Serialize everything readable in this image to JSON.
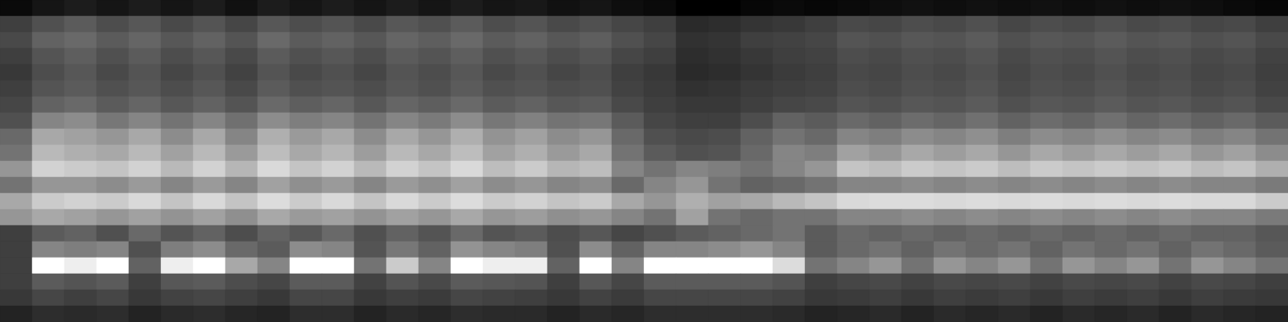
{
  "chart_data": {
    "type": "heatmap",
    "tick_labels": false,
    "cells": [
      [
        0.15,
        0.18,
        0.2,
        0.18,
        0.2,
        0.18,
        0.2,
        0.17,
        0.2,
        0.18,
        0.2,
        0.18,
        0.2,
        0.18,
        0.2,
        0.18,
        0.19,
        0.17,
        0.18,
        0.16,
        0.15,
        0.12,
        0.12,
        0.14,
        0.15,
        0.14,
        0.15,
        0.16,
        0.17,
        0.16,
        0.17,
        0.16,
        0.17,
        0.16,
        0.17,
        0.16,
        0.17,
        0.16,
        0.15,
        0.14
      ],
      [
        0.3,
        0.35,
        0.38,
        0.34,
        0.37,
        0.33,
        0.36,
        0.32,
        0.37,
        0.34,
        0.36,
        0.33,
        0.37,
        0.35,
        0.38,
        0.34,
        0.36,
        0.33,
        0.35,
        0.32,
        0.3,
        0.24,
        0.25,
        0.27,
        0.28,
        0.3,
        0.33,
        0.32,
        0.34,
        0.33,
        0.35,
        0.32,
        0.34,
        0.33,
        0.35,
        0.33,
        0.34,
        0.32,
        0.33,
        0.3
      ],
      [
        0.33,
        0.4,
        0.42,
        0.38,
        0.41,
        0.37,
        0.4,
        0.36,
        0.42,
        0.38,
        0.4,
        0.37,
        0.41,
        0.39,
        0.42,
        0.38,
        0.4,
        0.37,
        0.39,
        0.35,
        0.32,
        0.26,
        0.27,
        0.3,
        0.31,
        0.32,
        0.36,
        0.35,
        0.37,
        0.36,
        0.38,
        0.35,
        0.37,
        0.36,
        0.38,
        0.36,
        0.37,
        0.35,
        0.36,
        0.33
      ],
      [
        0.3,
        0.36,
        0.39,
        0.35,
        0.38,
        0.34,
        0.37,
        0.33,
        0.38,
        0.35,
        0.37,
        0.34,
        0.38,
        0.36,
        0.39,
        0.35,
        0.37,
        0.34,
        0.36,
        0.32,
        0.3,
        0.25,
        0.26,
        0.28,
        0.3,
        0.31,
        0.34,
        0.33,
        0.35,
        0.34,
        0.36,
        0.33,
        0.35,
        0.34,
        0.36,
        0.34,
        0.35,
        0.33,
        0.34,
        0.31
      ],
      [
        0.28,
        0.34,
        0.37,
        0.33,
        0.36,
        0.32,
        0.35,
        0.31,
        0.36,
        0.33,
        0.35,
        0.32,
        0.36,
        0.34,
        0.37,
        0.33,
        0.35,
        0.32,
        0.34,
        0.3,
        0.28,
        0.24,
        0.25,
        0.27,
        0.29,
        0.3,
        0.33,
        0.32,
        0.34,
        0.33,
        0.35,
        0.32,
        0.34,
        0.33,
        0.35,
        0.33,
        0.34,
        0.32,
        0.33,
        0.3
      ],
      [
        0.3,
        0.36,
        0.38,
        0.35,
        0.37,
        0.34,
        0.37,
        0.33,
        0.38,
        0.35,
        0.36,
        0.34,
        0.37,
        0.35,
        0.38,
        0.35,
        0.36,
        0.34,
        0.35,
        0.31,
        0.29,
        0.26,
        0.27,
        0.29,
        0.3,
        0.31,
        0.34,
        0.33,
        0.35,
        0.34,
        0.36,
        0.33,
        0.35,
        0.34,
        0.36,
        0.34,
        0.35,
        0.33,
        0.34,
        0.31
      ],
      [
        0.32,
        0.4,
        0.42,
        0.38,
        0.41,
        0.37,
        0.4,
        0.36,
        0.42,
        0.39,
        0.41,
        0.37,
        0.41,
        0.39,
        0.42,
        0.38,
        0.4,
        0.37,
        0.38,
        0.33,
        0.3,
        0.28,
        0.28,
        0.3,
        0.32,
        0.33,
        0.36,
        0.35,
        0.37,
        0.36,
        0.38,
        0.35,
        0.37,
        0.36,
        0.38,
        0.36,
        0.37,
        0.35,
        0.36,
        0.33
      ],
      [
        0.35,
        0.5,
        0.52,
        0.46,
        0.5,
        0.45,
        0.5,
        0.44,
        0.52,
        0.48,
        0.5,
        0.45,
        0.5,
        0.47,
        0.52,
        0.46,
        0.49,
        0.45,
        0.46,
        0.38,
        0.32,
        0.3,
        0.3,
        0.34,
        0.4,
        0.38,
        0.42,
        0.4,
        0.43,
        0.41,
        0.44,
        0.4,
        0.43,
        0.41,
        0.44,
        0.41,
        0.43,
        0.4,
        0.42,
        0.38
      ],
      [
        0.42,
        0.6,
        0.58,
        0.55,
        0.6,
        0.52,
        0.6,
        0.5,
        0.62,
        0.56,
        0.6,
        0.52,
        0.6,
        0.55,
        0.62,
        0.54,
        0.58,
        0.52,
        0.55,
        0.42,
        0.35,
        0.33,
        0.34,
        0.4,
        0.45,
        0.42,
        0.5,
        0.48,
        0.52,
        0.5,
        0.53,
        0.48,
        0.52,
        0.5,
        0.53,
        0.5,
        0.52,
        0.48,
        0.5,
        0.45
      ],
      [
        0.45,
        0.65,
        0.62,
        0.6,
        0.65,
        0.58,
        0.65,
        0.56,
        0.66,
        0.6,
        0.64,
        0.57,
        0.65,
        0.6,
        0.66,
        0.58,
        0.62,
        0.56,
        0.6,
        0.45,
        0.38,
        0.35,
        0.36,
        0.42,
        0.5,
        0.48,
        0.58,
        0.55,
        0.6,
        0.57,
        0.6,
        0.55,
        0.6,
        0.57,
        0.6,
        0.57,
        0.6,
        0.55,
        0.58,
        0.52
      ],
      [
        0.55,
        0.72,
        0.7,
        0.68,
        0.72,
        0.65,
        0.72,
        0.64,
        0.74,
        0.68,
        0.72,
        0.65,
        0.72,
        0.68,
        0.74,
        0.66,
        0.7,
        0.64,
        0.66,
        0.5,
        0.45,
        0.5,
        0.48,
        0.45,
        0.5,
        0.55,
        0.68,
        0.66,
        0.7,
        0.68,
        0.7,
        0.66,
        0.7,
        0.68,
        0.7,
        0.68,
        0.7,
        0.66,
        0.68,
        0.62
      ],
      [
        0.45,
        0.55,
        0.55,
        0.52,
        0.56,
        0.5,
        0.56,
        0.5,
        0.58,
        0.53,
        0.56,
        0.5,
        0.56,
        0.53,
        0.58,
        0.52,
        0.55,
        0.5,
        0.52,
        0.42,
        0.5,
        0.55,
        0.45,
        0.4,
        0.42,
        0.45,
        0.5,
        0.5,
        0.52,
        0.5,
        0.52,
        0.5,
        0.52,
        0.5,
        0.52,
        0.5,
        0.52,
        0.5,
        0.5,
        0.47
      ],
      [
        0.6,
        0.7,
        0.72,
        0.7,
        0.74,
        0.68,
        0.74,
        0.68,
        0.75,
        0.7,
        0.74,
        0.68,
        0.74,
        0.7,
        0.75,
        0.7,
        0.72,
        0.68,
        0.7,
        0.6,
        0.55,
        0.62,
        0.58,
        0.6,
        0.65,
        0.68,
        0.74,
        0.75,
        0.75,
        0.74,
        0.75,
        0.74,
        0.75,
        0.74,
        0.75,
        0.74,
        0.75,
        0.74,
        0.74,
        0.7
      ],
      [
        0.55,
        0.6,
        0.58,
        0.55,
        0.58,
        0.54,
        0.58,
        0.53,
        0.6,
        0.56,
        0.58,
        0.54,
        0.58,
        0.55,
        0.6,
        0.55,
        0.57,
        0.53,
        0.55,
        0.5,
        0.45,
        0.58,
        0.45,
        0.42,
        0.45,
        0.45,
        0.5,
        0.5,
        0.52,
        0.5,
        0.52,
        0.5,
        0.52,
        0.5,
        0.52,
        0.5,
        0.52,
        0.5,
        0.5,
        0.47
      ],
      [
        0.3,
        0.38,
        0.4,
        0.35,
        0.42,
        0.36,
        0.4,
        0.34,
        0.4,
        0.37,
        0.42,
        0.35,
        0.4,
        0.36,
        0.42,
        0.36,
        0.38,
        0.34,
        0.37,
        0.32,
        0.35,
        0.38,
        0.4,
        0.42,
        0.45,
        0.38,
        0.42,
        0.4,
        0.42,
        0.4,
        0.42,
        0.4,
        0.42,
        0.4,
        0.42,
        0.4,
        0.42,
        0.4,
        0.4,
        0.37
      ],
      [
        0.3,
        0.5,
        0.48,
        0.5,
        0.35,
        0.48,
        0.52,
        0.42,
        0.38,
        0.52,
        0.5,
        0.36,
        0.46,
        0.4,
        0.54,
        0.5,
        0.48,
        0.35,
        0.52,
        0.4,
        0.5,
        0.5,
        0.52,
        0.55,
        0.5,
        0.38,
        0.42,
        0.45,
        0.4,
        0.45,
        0.42,
        0.45,
        0.4,
        0.45,
        0.42,
        0.45,
        0.4,
        0.45,
        0.42,
        0.38
      ],
      [
        0.3,
        0.85,
        0.8,
        0.85,
        0.4,
        0.8,
        0.85,
        0.6,
        0.5,
        0.85,
        0.85,
        0.45,
        0.7,
        0.5,
        0.85,
        0.8,
        0.8,
        0.4,
        0.85,
        0.5,
        0.85,
        0.85,
        0.85,
        0.85,
        0.75,
        0.45,
        0.5,
        0.55,
        0.45,
        0.55,
        0.5,
        0.55,
        0.45,
        0.55,
        0.5,
        0.55,
        0.45,
        0.55,
        0.5,
        0.45
      ],
      [
        0.3,
        0.38,
        0.36,
        0.38,
        0.3,
        0.37,
        0.38,
        0.34,
        0.32,
        0.38,
        0.38,
        0.31,
        0.36,
        0.33,
        0.38,
        0.37,
        0.36,
        0.3,
        0.37,
        0.32,
        0.38,
        0.38,
        0.38,
        0.38,
        0.36,
        0.3,
        0.32,
        0.33,
        0.31,
        0.33,
        0.32,
        0.33,
        0.31,
        0.33,
        0.32,
        0.33,
        0.31,
        0.33,
        0.32,
        0.3
      ],
      [
        0.28,
        0.32,
        0.3,
        0.32,
        0.28,
        0.31,
        0.32,
        0.3,
        0.28,
        0.32,
        0.32,
        0.28,
        0.3,
        0.29,
        0.32,
        0.31,
        0.3,
        0.28,
        0.31,
        0.29,
        0.32,
        0.32,
        0.32,
        0.32,
        0.31,
        0.28,
        0.29,
        0.3,
        0.28,
        0.3,
        0.29,
        0.3,
        0.28,
        0.3,
        0.29,
        0.3,
        0.28,
        0.3,
        0.29,
        0.28
      ],
      [
        0.22,
        0.25,
        0.24,
        0.25,
        0.22,
        0.24,
        0.25,
        0.23,
        0.22,
        0.25,
        0.25,
        0.22,
        0.24,
        0.23,
        0.25,
        0.24,
        0.24,
        0.22,
        0.24,
        0.23,
        0.25,
        0.25,
        0.25,
        0.25,
        0.24,
        0.22,
        0.23,
        0.24,
        0.22,
        0.24,
        0.23,
        0.24,
        0.22,
        0.24,
        0.23,
        0.24,
        0.22,
        0.24,
        0.23,
        0.22
      ]
    ]
  }
}
